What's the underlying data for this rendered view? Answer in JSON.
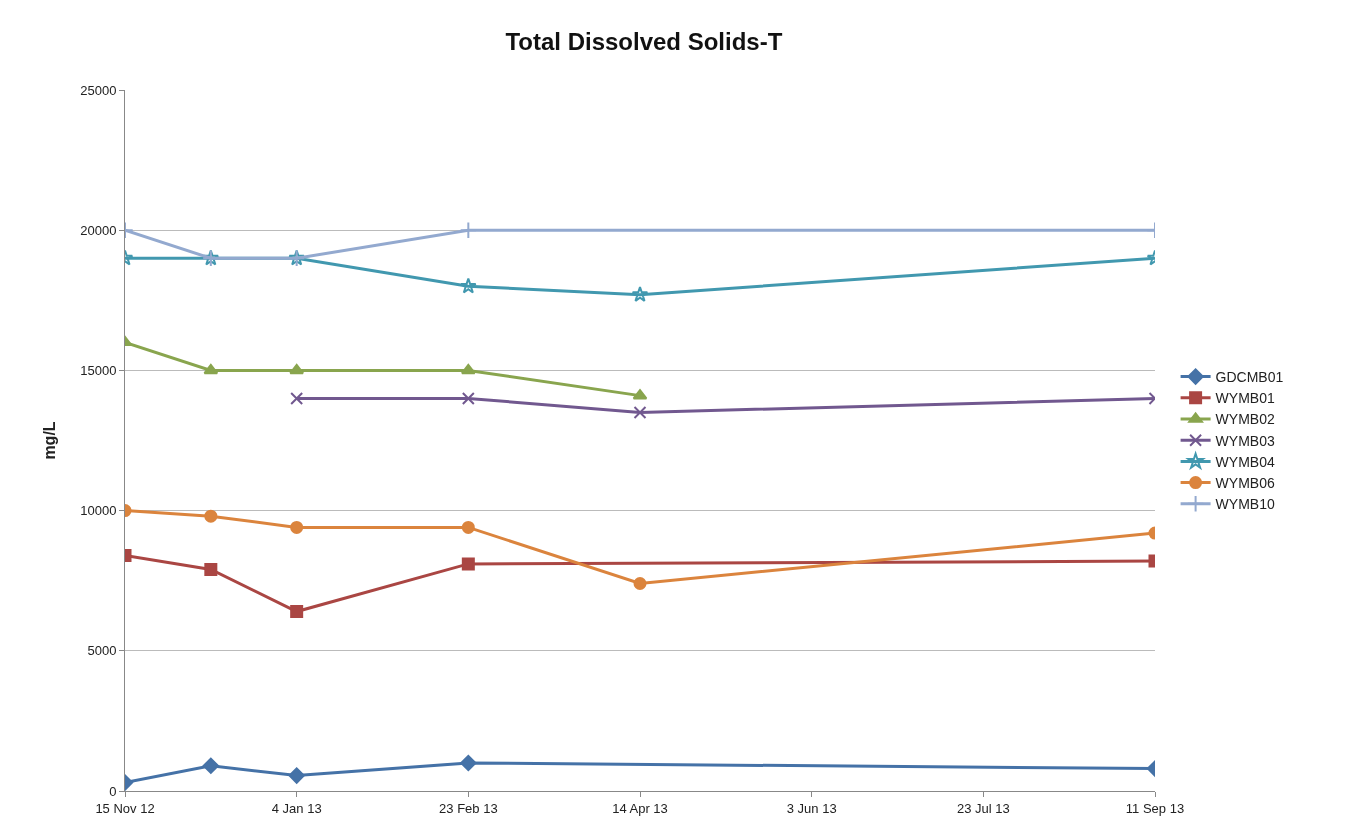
{
  "chart_data": {
    "type": "line",
    "title": "Total Dissolved Solids-T",
    "ylabel": "mg/L",
    "x": [
      "2012-11-15",
      "2012-12-10",
      "2013-01-04",
      "2013-02-23",
      "2013-04-14",
      "2013-09-11"
    ],
    "xlim": [
      "2012-11-15",
      "2013-09-11"
    ],
    "xticks": [
      {
        "value": "2012-11-15",
        "label": "15 Nov 12"
      },
      {
        "value": "2013-01-04",
        "label": "4 Jan 13"
      },
      {
        "value": "2013-02-23",
        "label": "23 Feb 13"
      },
      {
        "value": "2013-04-14",
        "label": "14 Apr 13"
      },
      {
        "value": "2013-06-03",
        "label": "3 Jun 13"
      },
      {
        "value": "2013-07-23",
        "label": "23 Jul 13"
      },
      {
        "value": "2013-09-11",
        "label": "11 Sep 13"
      }
    ],
    "ylim": [
      0,
      25000
    ],
    "yticks": [
      0,
      5000,
      10000,
      15000,
      20000,
      25000
    ],
    "grid": "y",
    "legend": "right",
    "series": [
      {
        "name": "GDCMB01",
        "color": "#4572a7",
        "marker": "diamond",
        "values": [
          300,
          900,
          550,
          1000,
          null,
          800
        ]
      },
      {
        "name": "WYMB01",
        "color": "#aa4643",
        "marker": "square",
        "values": [
          8400,
          7900,
          6400,
          8100,
          null,
          8200
        ]
      },
      {
        "name": "WYMB02",
        "color": "#89a54e",
        "marker": "triangle",
        "values": [
          16000,
          15000,
          15000,
          15000,
          14100,
          null
        ]
      },
      {
        "name": "WYMB03",
        "color": "#71588f",
        "marker": "cross",
        "values": [
          null,
          null,
          14000,
          14000,
          13500,
          14000
        ]
      },
      {
        "name": "WYMB04",
        "color": "#4198af",
        "marker": "star",
        "values": [
          19000,
          19000,
          19000,
          18000,
          17700,
          19000
        ]
      },
      {
        "name": "WYMB06",
        "color": "#db843d",
        "marker": "circle",
        "values": [
          10000,
          9800,
          9400,
          9400,
          7400,
          9200
        ]
      },
      {
        "name": "WYMB10",
        "color": "#93a9cf",
        "marker": "plus",
        "values": [
          20000,
          19000,
          19000,
          20000,
          null,
          20000
        ]
      }
    ]
  }
}
